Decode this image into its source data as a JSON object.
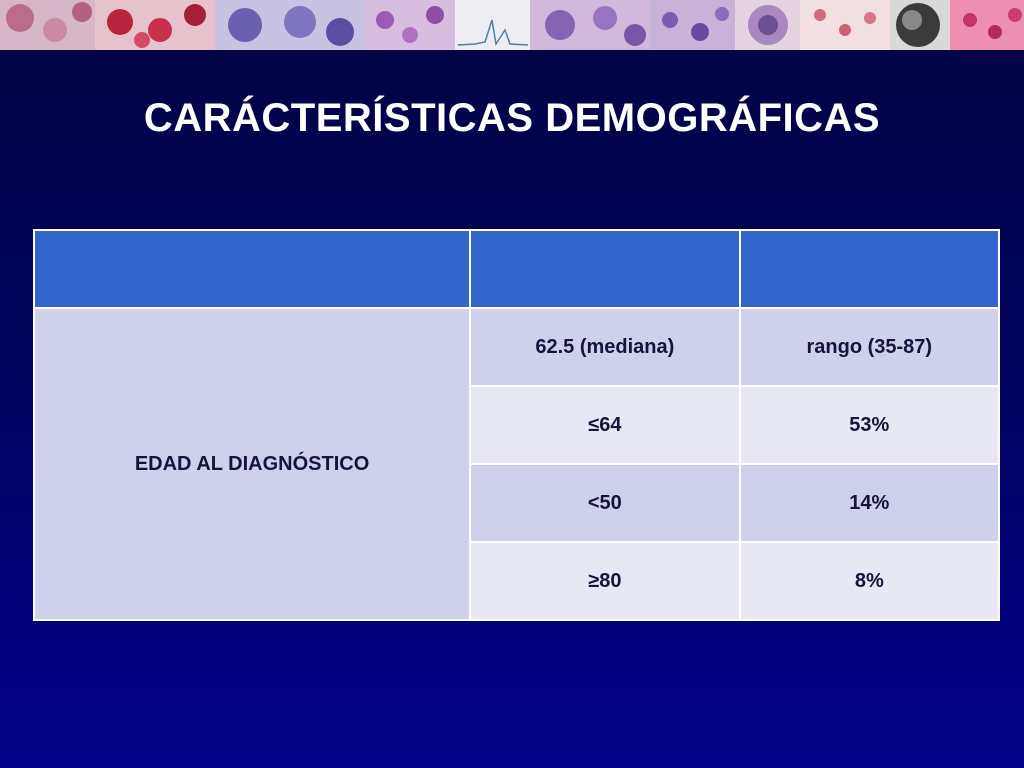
{
  "title": "CARÁCTERÍSTICAS DEMOGRÁFICAS",
  "colors": {
    "background_top": "#030342",
    "background_bottom": "#02028a",
    "header_blue": "#3366cc",
    "row_dark": "#cfd0eb",
    "row_light": "#e7e8f4",
    "text": "#14143c"
  },
  "table": {
    "header": [
      "",
      "",
      ""
    ],
    "category": "EDAD AL DIAGNÓSTICO",
    "rows": [
      {
        "label": "62.5 (mediana)",
        "value": "rango (35-87)"
      },
      {
        "label": "≤64",
        "value": "53%"
      },
      {
        "label": "<50",
        "value": "14%"
      },
      {
        "label": "≥80",
        "value": "8%"
      }
    ]
  }
}
